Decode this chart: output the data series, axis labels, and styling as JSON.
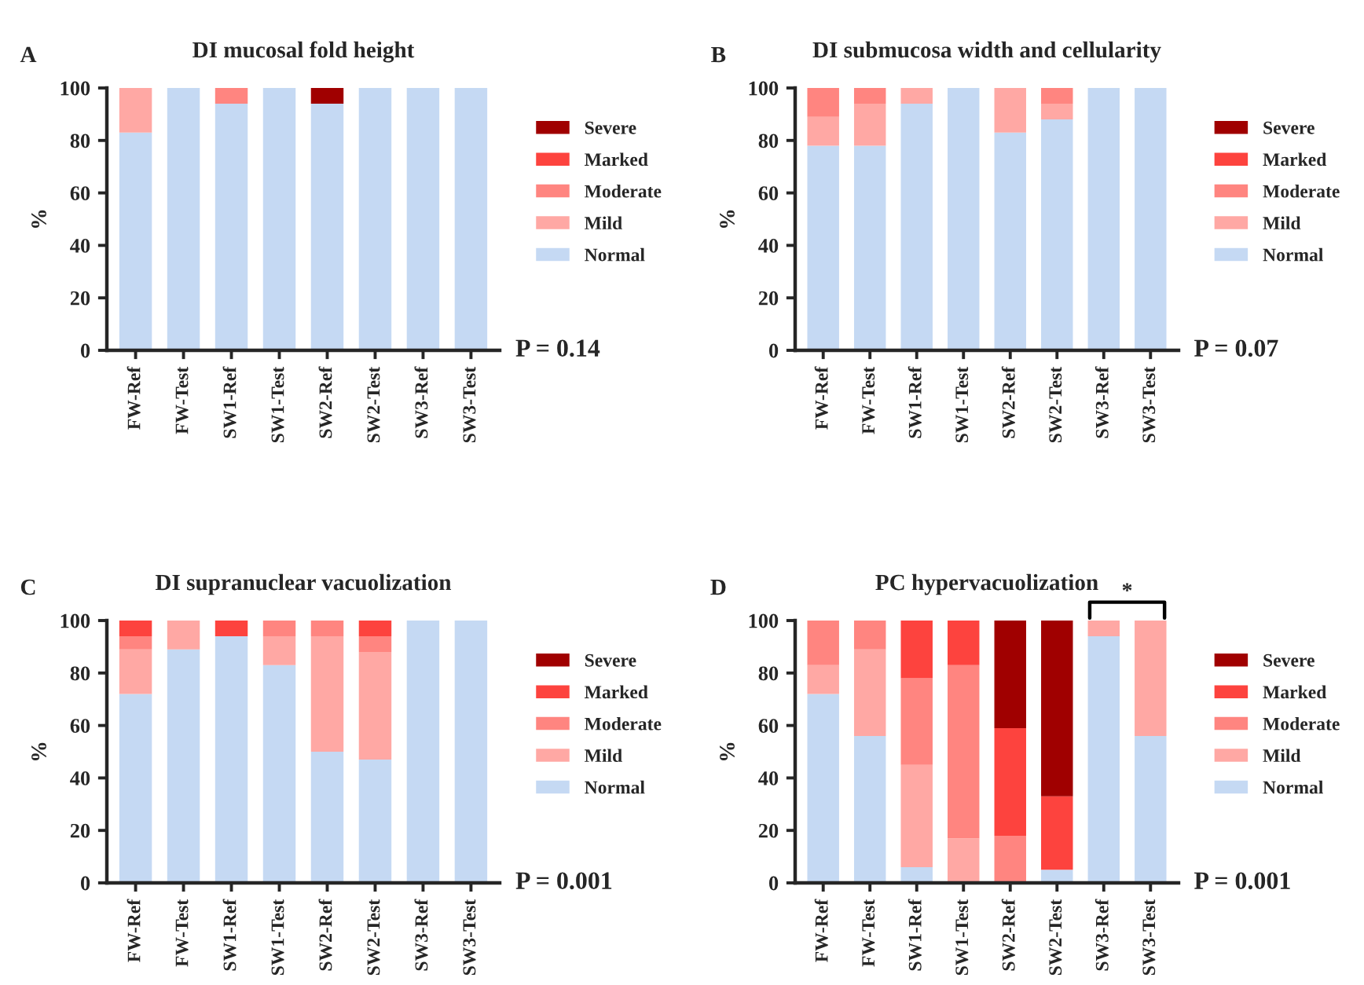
{
  "chart_data": [
    {
      "type": "bar",
      "title": "DI mucosal fold height",
      "ylabel": "%",
      "stacked": true,
      "legend": "right",
      "grid": false,
      "ylim": [
        0,
        100
      ],
      "yticks": [
        0,
        20,
        40,
        60,
        80,
        100
      ],
      "categories": [
        "FW-Ref",
        "FW-Test",
        "SW1-Ref",
        "SW1-Test",
        "SW2-Ref",
        "SW2-Test",
        "SW3-Ref",
        "SW3-Test"
      ],
      "series": [
        {
          "name": "Normal",
          "color": "#c5d9f3",
          "values": [
            83,
            100,
            94,
            100,
            94,
            100,
            100,
            100
          ]
        },
        {
          "name": "Mild",
          "color": "#ffa8a4",
          "values": [
            17,
            0,
            0,
            0,
            0,
            0,
            0,
            0
          ]
        },
        {
          "name": "Moderate",
          "color": "#ff8580",
          "values": [
            0,
            0,
            6,
            0,
            0,
            0,
            0,
            0
          ]
        },
        {
          "name": "Marked",
          "color": "#fd433e",
          "values": [
            0,
            0,
            0,
            0,
            0,
            0,
            0,
            0
          ]
        },
        {
          "name": "Severe",
          "color": "#a00000",
          "values": [
            0,
            0,
            0,
            0,
            6,
            0,
            0,
            0
          ]
        }
      ],
      "annotations": [
        "A",
        "P = 0.14"
      ]
    },
    {
      "type": "bar",
      "title": "DI submucosa width and cellularity",
      "ylabel": "%",
      "stacked": true,
      "legend": "right",
      "grid": false,
      "ylim": [
        0,
        100
      ],
      "yticks": [
        0,
        20,
        40,
        60,
        80,
        100
      ],
      "categories": [
        "FW-Ref",
        "FW-Test",
        "SW1-Ref",
        "SW1-Test",
        "SW2-Ref",
        "SW2-Test",
        "SW3-Ref",
        "SW3-Test"
      ],
      "series": [
        {
          "name": "Normal",
          "color": "#c5d9f3",
          "values": [
            78,
            78,
            94,
            100,
            83,
            88,
            100,
            100
          ]
        },
        {
          "name": "Mild",
          "color": "#ffa8a4",
          "values": [
            11,
            16,
            6,
            0,
            17,
            6,
            0,
            0
          ]
        },
        {
          "name": "Moderate",
          "color": "#ff8580",
          "values": [
            11,
            6,
            0,
            0,
            0,
            6,
            0,
            0
          ]
        },
        {
          "name": "Marked",
          "color": "#fd433e",
          "values": [
            0,
            0,
            0,
            0,
            0,
            0,
            0,
            0
          ]
        },
        {
          "name": "Severe",
          "color": "#a00000",
          "values": [
            0,
            0,
            0,
            0,
            0,
            0,
            0,
            0
          ]
        }
      ],
      "annotations": [
        "B",
        "P = 0.07"
      ]
    },
    {
      "type": "bar",
      "title": "DI supranuclear vacuolization",
      "ylabel": "%",
      "stacked": true,
      "legend": "right",
      "grid": false,
      "ylim": [
        0,
        100
      ],
      "yticks": [
        0,
        20,
        40,
        60,
        80,
        100
      ],
      "categories": [
        "FW-Ref",
        "FW-Test",
        "SW1-Ref",
        "SW1-Test",
        "SW2-Ref",
        "SW2-Test",
        "SW3-Ref",
        "SW3-Test"
      ],
      "series": [
        {
          "name": "Normal",
          "color": "#c5d9f3",
          "values": [
            72,
            89,
            94,
            83,
            50,
            47,
            100,
            100
          ]
        },
        {
          "name": "Mild",
          "color": "#ffa8a4",
          "values": [
            17,
            11,
            0,
            11,
            44,
            41,
            0,
            0
          ]
        },
        {
          "name": "Moderate",
          "color": "#ff8580",
          "values": [
            5,
            0,
            0,
            6,
            6,
            6,
            0,
            0
          ]
        },
        {
          "name": "Marked",
          "color": "#fd433e",
          "values": [
            6,
            0,
            6,
            0,
            0,
            6,
            0,
            0
          ]
        },
        {
          "name": "Severe",
          "color": "#a00000",
          "values": [
            0,
            0,
            0,
            0,
            0,
            0,
            0,
            0
          ]
        }
      ],
      "annotations": [
        "C",
        "P = 0.001"
      ]
    },
    {
      "type": "bar",
      "title": "PC hypervacuolization",
      "ylabel": "%",
      "stacked": true,
      "legend": "right",
      "grid": false,
      "ylim": [
        0,
        100
      ],
      "yticks": [
        0,
        20,
        40,
        60,
        80,
        100
      ],
      "categories": [
        "FW-Ref",
        "FW-Test",
        "SW1-Ref",
        "SW1-Test",
        "SW2-Ref",
        "SW2-Test",
        "SW3-Ref",
        "SW3-Test"
      ],
      "series": [
        {
          "name": "Normal",
          "color": "#c5d9f3",
          "values": [
            72,
            56,
            6,
            0,
            0,
            5,
            94,
            56
          ]
        },
        {
          "name": "Mild",
          "color": "#ffa8a4",
          "values": [
            11,
            33,
            39,
            17,
            0,
            0,
            6,
            44
          ]
        },
        {
          "name": "Moderate",
          "color": "#ff8580",
          "values": [
            17,
            11,
            33,
            66,
            18,
            0,
            0,
            0
          ]
        },
        {
          "name": "Marked",
          "color": "#fd433e",
          "values": [
            0,
            0,
            22,
            17,
            41,
            28,
            0,
            0
          ]
        },
        {
          "name": "Severe",
          "color": "#a00000",
          "values": [
            0,
            0,
            0,
            0,
            41,
            67,
            0,
            0
          ]
        }
      ],
      "annotations": [
        "D",
        "P = 0.001",
        "*"
      ]
    }
  ]
}
